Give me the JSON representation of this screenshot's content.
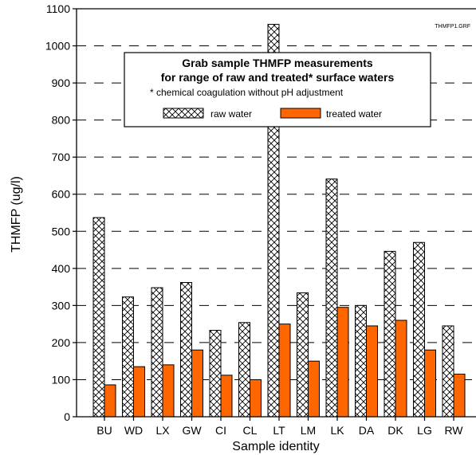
{
  "chart_data": {
    "type": "bar",
    "title": "Grab sample THMFP measurements",
    "subtitle": "for range of raw and treated* surface waters",
    "note": "* chemical coagulation without pH adjustment",
    "file_tag": "THMFP1.GRF",
    "xlabel": "Sample identity",
    "ylabel": "THMFP (ug/l)",
    "ylim": [
      0,
      1100
    ],
    "yticks": [
      0,
      100,
      200,
      300,
      400,
      500,
      600,
      700,
      800,
      900,
      1000,
      1100
    ],
    "grid": "horizontal-dashed",
    "legend_position": "top-center",
    "categories": [
      "BU",
      "WD",
      "LX",
      "GW",
      "CI",
      "CL",
      "LT",
      "LM",
      "LK",
      "DA",
      "DK",
      "LG",
      "RW"
    ],
    "series": [
      {
        "name": "raw water",
        "pattern": "crosshatch",
        "color": "#000000",
        "values": [
          537,
          323,
          348,
          362,
          233,
          254,
          1058,
          334,
          641,
          300,
          446,
          470,
          245
        ]
      },
      {
        "name": "treated water",
        "pattern": "solid",
        "color": "#ff6600",
        "values": [
          86,
          135,
          140,
          180,
          112,
          100,
          250,
          150,
          295,
          245,
          260,
          180,
          115
        ]
      }
    ]
  }
}
